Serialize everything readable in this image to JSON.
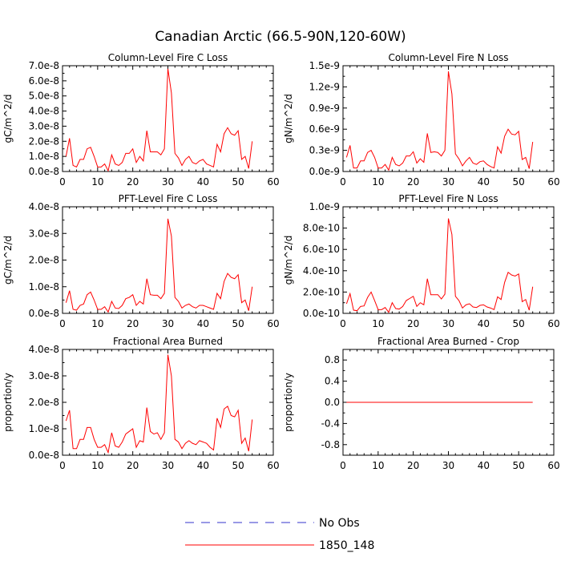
{
  "figure": {
    "title": "Canadian Arctic (66.5-90N,120-60W)"
  },
  "chart_data": [
    {
      "type": "line",
      "title": "Column-Level Fire C Loss",
      "ylabel": "gC/m^2/d",
      "xlim": [
        0,
        60
      ],
      "xticks": [
        0,
        10,
        20,
        30,
        40,
        50,
        60
      ],
      "ylim": [
        0,
        7e-08
      ],
      "yticks": [
        0,
        1e-08,
        2e-08,
        3e-08,
        4e-08,
        5e-08,
        6e-08,
        7e-08
      ],
      "yticklabels": [
        "0.0e-8",
        "1.0e-8",
        "2.0e-8",
        "3.0e-8",
        "4.0e-8",
        "5.0e-8",
        "6.0e-8",
        "7.0e-8"
      ],
      "series": [
        {
          "name": "1850_148",
          "color": "#ff0000",
          "x": [
            1,
            2,
            3,
            4,
            5,
            6,
            7,
            8,
            9,
            10,
            11,
            12,
            13,
            14,
            15,
            16,
            17,
            18,
            19,
            20,
            21,
            22,
            23,
            24,
            25,
            26,
            27,
            28,
            29,
            30,
            31,
            32,
            33,
            34,
            35,
            36,
            37,
            38,
            39,
            40,
            41,
            42,
            43,
            44,
            45,
            46,
            47,
            48,
            49,
            50,
            51,
            52,
            53,
            54
          ],
          "y": [
            1e-08,
            2.2e-08,
            4e-09,
            3e-09,
            8e-09,
            8e-09,
            1.5e-08,
            1.6e-08,
            1e-08,
            3e-09,
            3e-09,
            5e-09,
            5e-10,
            1.1e-08,
            5e-09,
            4e-09,
            6e-09,
            1.2e-08,
            1.2e-08,
            1.5e-08,
            6e-09,
            1e-08,
            7e-09,
            2.7e-08,
            1.3e-08,
            1.3e-08,
            1.3e-08,
            1.1e-08,
            1.5e-08,
            6.8e-08,
            5.2e-08,
            1.2e-08,
            9e-09,
            4e-09,
            8e-09,
            1e-08,
            6e-09,
            5e-09,
            7e-09,
            8e-09,
            5e-09,
            4e-09,
            3e-09,
            1.8e-08,
            1.3e-08,
            2.5e-08,
            2.9e-08,
            2.5e-08,
            2.4e-08,
            2.7e-08,
            8e-09,
            1e-08,
            2e-09,
            2e-08
          ]
        }
      ]
    },
    {
      "type": "line",
      "title": "Column-Level Fire N Loss",
      "ylabel": "gN/m^2/d",
      "xlim": [
        0,
        60
      ],
      "xticks": [
        0,
        10,
        20,
        30,
        40,
        50,
        60
      ],
      "ylim": [
        0,
        1.5e-09
      ],
      "yticks": [
        0,
        3e-10,
        6e-10,
        9e-10,
        1.2e-09,
        1.5e-09
      ],
      "yticklabels": [
        "0.0e-9",
        "0.3e-9",
        "0.6e-9",
        "0.9e-9",
        "1.2e-9",
        "1.5e-9"
      ],
      "series": [
        {
          "name": "1850_148",
          "color": "#ff0000",
          "x": [
            1,
            2,
            3,
            4,
            5,
            6,
            7,
            8,
            9,
            10,
            11,
            12,
            13,
            14,
            15,
            16,
            17,
            18,
            19,
            20,
            21,
            22,
            23,
            24,
            25,
            26,
            27,
            28,
            29,
            30,
            31,
            32,
            33,
            34,
            35,
            36,
            37,
            38,
            39,
            40,
            41,
            42,
            43,
            44,
            45,
            46,
            47,
            48,
            49,
            50,
            51,
            52,
            53,
            54
          ],
          "y": [
            2e-10,
            3.7e-10,
            5e-11,
            5e-11,
            1.5e-10,
            1.5e-10,
            2.7e-10,
            3e-10,
            2e-10,
            5e-11,
            5e-11,
            1e-10,
            2e-11,
            2e-10,
            1e-10,
            8e-11,
            1.2e-10,
            2.2e-10,
            2.2e-10,
            2.8e-10,
            1.2e-10,
            1.8e-10,
            1.3e-10,
            5.4e-10,
            2.7e-10,
            2.8e-10,
            2.7e-10,
            2.2e-10,
            3e-10,
            1.42e-09,
            1.1e-09,
            2.5e-10,
            1.8e-10,
            8e-11,
            1.5e-10,
            2e-10,
            1.2e-10,
            1e-10,
            1.4e-10,
            1.5e-10,
            1e-10,
            7e-11,
            5e-11,
            3.5e-10,
            2.6e-10,
            5e-10,
            6e-10,
            5.3e-10,
            5.2e-10,
            5.7e-10,
            1.7e-10,
            2e-10,
            4e-11,
            4.2e-10
          ]
        }
      ]
    },
    {
      "type": "line",
      "title": "PFT-Level Fire C Loss",
      "ylabel": "gC/m^2/d",
      "xlim": [
        0,
        60
      ],
      "xticks": [
        0,
        10,
        20,
        30,
        40,
        50,
        60
      ],
      "ylim": [
        0,
        4e-08
      ],
      "yticks": [
        0,
        1e-08,
        2e-08,
        3e-08,
        4e-08
      ],
      "yticklabels": [
        "0.0e-8",
        "1.0e-8",
        "2.0e-8",
        "3.0e-8",
        "4.0e-8"
      ],
      "series": [
        {
          "name": "1850_148",
          "color": "#ff0000",
          "x": [
            1,
            2,
            3,
            4,
            5,
            6,
            7,
            8,
            9,
            10,
            11,
            12,
            13,
            14,
            15,
            16,
            17,
            18,
            19,
            20,
            21,
            22,
            23,
            24,
            25,
            26,
            27,
            28,
            29,
            30,
            31,
            32,
            33,
            34,
            35,
            36,
            37,
            38,
            39,
            40,
            41,
            42,
            43,
            44,
            45,
            46,
            47,
            48,
            49,
            50,
            51,
            52,
            53,
            54
          ],
          "y": [
            4e-09,
            8.5e-09,
            1.5e-09,
            1.2e-09,
            3e-09,
            3.5e-09,
            7e-09,
            8e-09,
            5e-09,
            1.5e-09,
            1.5e-09,
            2.5e-09,
            5e-10,
            4.5e-09,
            2e-09,
            1.8e-09,
            3e-09,
            5.5e-09,
            6e-09,
            7e-09,
            3e-09,
            4.5e-09,
            3.5e-09,
            1.3e-08,
            7e-09,
            6.8e-09,
            6.8e-09,
            5.5e-09,
            7.5e-09,
            3.55e-08,
            2.9e-08,
            6e-09,
            4.5e-09,
            2e-09,
            3e-09,
            3.5e-09,
            2.5e-09,
            2e-09,
            3e-09,
            3e-09,
            2.5e-09,
            2e-09,
            1.5e-09,
            7.5e-09,
            5.5e-09,
            1.2e-08,
            1.5e-08,
            1.35e-08,
            1.3e-08,
            1.45e-08,
            4e-09,
            5e-09,
            1e-09,
            1e-08
          ]
        }
      ]
    },
    {
      "type": "line",
      "title": "PFT-Level Fire N Loss",
      "ylabel": "gN/m^2/d",
      "xlim": [
        0,
        60
      ],
      "xticks": [
        0,
        10,
        20,
        30,
        40,
        50,
        60
      ],
      "ylim": [
        0,
        1e-09
      ],
      "yticks": [
        0,
        2e-10,
        4e-10,
        6e-10,
        8e-10,
        1e-09
      ],
      "yticklabels": [
        "0.0e-10",
        "2.0e-10",
        "4.0e-10",
        "6.0e-10",
        "8.0e-10",
        "1.0e-9"
      ],
      "series": [
        {
          "name": "1850_148",
          "color": "#ff0000",
          "x": [
            1,
            2,
            3,
            4,
            5,
            6,
            7,
            8,
            9,
            10,
            11,
            12,
            13,
            14,
            15,
            16,
            17,
            18,
            19,
            20,
            21,
            22,
            23,
            24,
            25,
            26,
            27,
            28,
            29,
            30,
            31,
            32,
            33,
            34,
            35,
            36,
            37,
            38,
            39,
            40,
            41,
            42,
            43,
            44,
            45,
            46,
            47,
            48,
            49,
            50,
            51,
            52,
            53,
            54
          ],
          "y": [
            9e-11,
            1.85e-10,
            3e-11,
            2.5e-11,
            6.5e-11,
            7e-11,
            1.5e-10,
            2e-10,
            1.2e-10,
            3.5e-11,
            3.5e-11,
            5.5e-11,
            1e-11,
            1e-10,
            4.5e-11,
            4e-11,
            6.5e-11,
            1.2e-10,
            1.4e-10,
            1.6e-10,
            6.5e-11,
            1e-10,
            8e-11,
            3.25e-10,
            1.75e-10,
            1.75e-10,
            1.75e-10,
            1.35e-10,
            1.8e-10,
            8.9e-10,
            7.4e-10,
            1.6e-10,
            1.2e-10,
            5e-11,
            8e-11,
            9e-11,
            6e-11,
            5.5e-11,
            7.5e-11,
            8e-11,
            6e-11,
            5e-11,
            3.5e-11,
            1.55e-10,
            1.3e-10,
            2.9e-10,
            3.85e-10,
            3.6e-10,
            3.5e-10,
            3.7e-10,
            1.1e-10,
            1.3e-10,
            3e-11,
            2.5e-10
          ]
        }
      ]
    },
    {
      "type": "line",
      "title": "Fractional Area Burned",
      "ylabel": "proportion/y",
      "xlim": [
        0,
        60
      ],
      "xticks": [
        0,
        10,
        20,
        30,
        40,
        50,
        60
      ],
      "ylim": [
        0,
        4e-08
      ],
      "yticks": [
        0,
        1e-08,
        2e-08,
        3e-08,
        4e-08
      ],
      "yticklabels": [
        "0.0e-8",
        "1.0e-8",
        "2.0e-8",
        "3.0e-8",
        "4.0e-8"
      ],
      "series": [
        {
          "name": "1850_148",
          "color": "#ff0000",
          "x": [
            1,
            2,
            3,
            4,
            5,
            6,
            7,
            8,
            9,
            10,
            11,
            12,
            13,
            14,
            15,
            16,
            17,
            18,
            19,
            20,
            21,
            22,
            23,
            24,
            25,
            26,
            27,
            28,
            29,
            30,
            31,
            32,
            33,
            34,
            35,
            36,
            37,
            38,
            39,
            40,
            41,
            42,
            43,
            44,
            45,
            46,
            47,
            48,
            49,
            50,
            51,
            52,
            53,
            54
          ],
          "y": [
            1.3e-08,
            1.7e-08,
            2.5e-09,
            2.5e-09,
            6e-09,
            6e-09,
            1.05e-08,
            1.05e-08,
            6e-09,
            3e-09,
            3e-09,
            4e-09,
            1e-09,
            8.5e-09,
            3.5e-09,
            3e-09,
            5e-09,
            8e-09,
            9e-09,
            1e-08,
            3e-09,
            5.5e-09,
            5e-09,
            1.8e-08,
            9e-09,
            8e-09,
            8.5e-09,
            6e-09,
            8.5e-09,
            3.8e-08,
            3e-08,
            6e-09,
            5e-09,
            2.5e-09,
            4.5e-09,
            5.5e-09,
            4.5e-09,
            4e-09,
            5.5e-09,
            5e-09,
            4.5e-09,
            3e-09,
            2e-09,
            1.4e-08,
            1.05e-08,
            1.75e-08,
            1.85e-08,
            1.5e-08,
            1.45e-08,
            1.7e-08,
            4.5e-09,
            6.5e-09,
            1.5e-09,
            1.35e-08
          ]
        }
      ]
    },
    {
      "type": "line",
      "title": "Fractional Area Burned - Crop",
      "ylabel": "proportion/y",
      "xlim": [
        0,
        60
      ],
      "xticks": [
        0,
        10,
        20,
        30,
        40,
        50,
        60
      ],
      "ylim": [
        -1.0,
        1.0
      ],
      "yticks": [
        -0.8,
        -0.4,
        0.0,
        0.4,
        0.8
      ],
      "yticklabels": [
        "-0.8",
        "-0.4",
        "0.0",
        "0.4",
        "0.8"
      ],
      "series": [
        {
          "name": "1850_148",
          "color": "#ff0000",
          "x": [
            1,
            54
          ],
          "y": [
            0.0,
            0.0
          ]
        }
      ]
    }
  ],
  "legend": {
    "placement": "bottom-center",
    "entries": [
      {
        "label": "No Obs",
        "color": "#3333cc",
        "style": "dashed"
      },
      {
        "label": "1850_148",
        "color": "#ff0000",
        "style": "solid"
      }
    ]
  }
}
